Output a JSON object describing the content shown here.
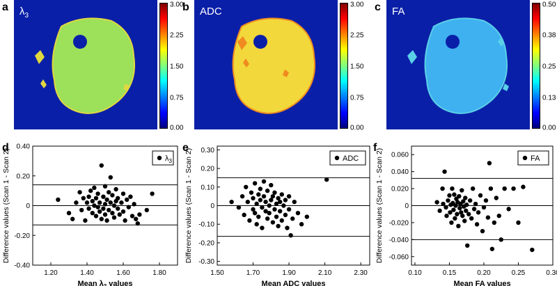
{
  "panel_letters": {
    "a": "a",
    "b": "b",
    "c": "c",
    "d": "d",
    "e": "e",
    "f": "f"
  },
  "maps": [
    {
      "label_base": "λ",
      "label_sub": "3",
      "ticks": [
        "3.00",
        "2.25",
        "1.50",
        "0.75",
        "0.00"
      ],
      "fill": "#9de05a",
      "accent": "#e0d840"
    },
    {
      "label": "ADC",
      "ticks": [
        "3.00",
        "2.25",
        "1.50",
        "0.75",
        "0.00"
      ],
      "fill": "#f2d83a",
      "accent": "#f08a20"
    },
    {
      "label": "FA",
      "ticks": [
        "0.50",
        "0.38",
        "0.25",
        "0.13",
        "0.00"
      ],
      "fill": "#3fb0f0",
      "accent": "#5ad0e8"
    }
  ],
  "chart_data": [
    {
      "type": "scatter",
      "title": "",
      "xlabel_base": "Mean ",
      "xlabel_sym": "λ",
      "xlabel_sub": "3",
      "xlabel_tail": " values",
      "ylabel": "Difference values (Scan 1 - Scan 2)",
      "xlim": [
        1.1,
        1.9
      ],
      "ylim": [
        -0.4,
        0.4
      ],
      "xticks": [
        1.2,
        1.4,
        1.6,
        1.8
      ],
      "xtick_labels": [
        "1.20",
        "1.40",
        "1.60",
        "1.80"
      ],
      "yticks": [
        -0.4,
        -0.2,
        0,
        0.2,
        0.4
      ],
      "ytick_labels": [
        "-0.40",
        "-0.20",
        "0",
        "0.20",
        "0.40"
      ],
      "hlines": [
        0.14,
        0,
        -0.13
      ],
      "legend_sym": "λ",
      "legend_sub": "3",
      "legend_position": "top-right",
      "points": [
        [
          1.24,
          0.04
        ],
        [
          1.3,
          -0.05
        ],
        [
          1.32,
          -0.09
        ],
        [
          1.34,
          0.02
        ],
        [
          1.36,
          0.09
        ],
        [
          1.37,
          -0.03
        ],
        [
          1.38,
          0.05
        ],
        [
          1.39,
          -0.1
        ],
        [
          1.4,
          0.02
        ],
        [
          1.41,
          0.06
        ],
        [
          1.41,
          -0.02
        ],
        [
          1.42,
          0.1
        ],
        [
          1.43,
          -0.05
        ],
        [
          1.43,
          0.03
        ],
        [
          1.44,
          0
        ],
        [
          1.44,
          0.12
        ],
        [
          1.45,
          -0.07
        ],
        [
          1.45,
          0.05
        ],
        [
          1.46,
          -0.01
        ],
        [
          1.46,
          0.08
        ],
        [
          1.47,
          -0.04
        ],
        [
          1.47,
          0.02
        ],
        [
          1.48,
          0.27
        ],
        [
          1.48,
          -0.09
        ],
        [
          1.49,
          0.06
        ],
        [
          1.49,
          -0.02
        ],
        [
          1.5,
          0.13
        ],
        [
          1.5,
          0.01
        ],
        [
          1.5,
          -0.06
        ],
        [
          1.51,
          0.04
        ],
        [
          1.51,
          -0.1
        ],
        [
          1.52,
          0.09
        ],
        [
          1.52,
          -0.03
        ],
        [
          1.53,
          0.02
        ],
        [
          1.53,
          0.19
        ],
        [
          1.54,
          -0.05
        ],
        [
          1.54,
          0.07
        ],
        [
          1.55,
          0
        ],
        [
          1.55,
          -0.08
        ],
        [
          1.56,
          0.11
        ],
        [
          1.56,
          0.03
        ],
        [
          1.57,
          -0.02
        ],
        [
          1.57,
          0.05
        ],
        [
          1.58,
          -0.06
        ],
        [
          1.59,
          0.02
        ],
        [
          1.6,
          0.08
        ],
        [
          1.6,
          -0.04
        ],
        [
          1.61,
          -0.1
        ],
        [
          1.62,
          0.04
        ],
        [
          1.63,
          -0.01
        ],
        [
          1.64,
          0.06
        ],
        [
          1.65,
          -0.07
        ],
        [
          1.66,
          0.01
        ],
        [
          1.67,
          -0.09
        ],
        [
          1.68,
          -0.12
        ],
        [
          1.69,
          -0.06
        ],
        [
          1.73,
          -0.03
        ],
        [
          1.76,
          0.08
        ]
      ]
    },
    {
      "type": "scatter",
      "title": "",
      "xlabel": "Mean ADC values",
      "ylabel": "Difference values (Scan 1 - Scan 2)",
      "xlim": [
        1.5,
        2.35
      ],
      "ylim": [
        -0.32,
        0.32
      ],
      "xticks": [
        1.5,
        1.7,
        1.9,
        2.1,
        2.3
      ],
      "xtick_labels": [
        "1.50",
        "1.70",
        "1.90",
        "2.10",
        "2.30"
      ],
      "yticks": [
        -0.3,
        -0.2,
        -0.1,
        0,
        0.1,
        0.2,
        0.3
      ],
      "ytick_labels": [
        "-0.30",
        "-0.20",
        "-0.10",
        "0",
        "0.10",
        "0.20",
        "0.30"
      ],
      "hlines": [
        0.15,
        0,
        -0.165
      ],
      "legend_label": "ADC",
      "legend_position": "top-right",
      "points": [
        [
          1.58,
          0.02
        ],
        [
          1.62,
          -0.01
        ],
        [
          1.64,
          0.05
        ],
        [
          1.65,
          -0.05
        ],
        [
          1.66,
          0.1
        ],
        [
          1.67,
          0.02
        ],
        [
          1.68,
          -0.08
        ],
        [
          1.69,
          0.07
        ],
        [
          1.7,
          -0.02
        ],
        [
          1.7,
          0.04
        ],
        [
          1.71,
          0.12
        ],
        [
          1.71,
          -0.04
        ],
        [
          1.72,
          0.01
        ],
        [
          1.72,
          -0.1
        ],
        [
          1.73,
          0.06
        ],
        [
          1.73,
          -0.06
        ],
        [
          1.74,
          0.03
        ],
        [
          1.74,
          0.09
        ],
        [
          1.75,
          -0.01
        ],
        [
          1.75,
          -0.12
        ],
        [
          1.76,
          0.05
        ],
        [
          1.76,
          0.13
        ],
        [
          1.77,
          -0.03
        ],
        [
          1.77,
          0.02
        ],
        [
          1.78,
          -0.07
        ],
        [
          1.78,
          0.08
        ],
        [
          1.79,
          0
        ],
        [
          1.79,
          -0.04
        ],
        [
          1.8,
          0.11
        ],
        [
          1.8,
          0.03
        ],
        [
          1.81,
          -0.09
        ],
        [
          1.81,
          0.05
        ],
        [
          1.82,
          -0.02
        ],
        [
          1.82,
          0.07
        ],
        [
          1.83,
          0.01
        ],
        [
          1.83,
          -0.06
        ],
        [
          1.84,
          0.04
        ],
        [
          1.84,
          -0.11
        ],
        [
          1.85,
          0.02
        ],
        [
          1.85,
          -0.03
        ],
        [
          1.86,
          0.06
        ],
        [
          1.86,
          -0.08
        ],
        [
          1.87,
          0
        ],
        [
          1.88,
          -0.05
        ],
        [
          1.88,
          0.03
        ],
        [
          1.89,
          -0.12
        ],
        [
          1.9,
          -0.02
        ],
        [
          1.9,
          0.05
        ],
        [
          1.91,
          -0.16
        ],
        [
          1.92,
          -0.07
        ],
        [
          1.93,
          0.02
        ],
        [
          1.95,
          -0.04
        ],
        [
          1.97,
          -0.1
        ],
        [
          2.0,
          -0.06
        ],
        [
          2.11,
          0.14
        ]
      ]
    },
    {
      "type": "scatter",
      "title": "",
      "xlabel": "Mean FA values",
      "ylabel": "Difference values (Scan 1 - Scan 2)",
      "xlim": [
        0.095,
        0.3
      ],
      "ylim": [
        -0.07,
        0.07
      ],
      "xticks": [
        0.1,
        0.15,
        0.2,
        0.25,
        0.3
      ],
      "xtick_labels": [
        "0.10",
        "0.15",
        "0.20",
        "0.25",
        "0.30"
      ],
      "yticks": [
        -0.06,
        -0.04,
        -0.02,
        0,
        0.02,
        0.04,
        0.06
      ],
      "ytick_labels": [
        "-0.060",
        "-0.040",
        "-0.020",
        "0",
        "0.020",
        "0.040",
        "0.060"
      ],
      "hlines": [
        0.032,
        0,
        -0.04
      ],
      "legend_label": "FA",
      "legend_position": "top-right",
      "points": [
        [
          0.132,
          0.004
        ],
        [
          0.136,
          -0.006
        ],
        [
          0.14,
          0.02
        ],
        [
          0.141,
          0.002
        ],
        [
          0.143,
          0.04
        ],
        [
          0.145,
          -0.002
        ],
        [
          0.146,
          -0.012
        ],
        [
          0.148,
          0.006
        ],
        [
          0.15,
          0.012
        ],
        [
          0.151,
          -0.008
        ],
        [
          0.152,
          0.001
        ],
        [
          0.153,
          -0.02
        ],
        [
          0.154,
          0.02
        ],
        [
          0.155,
          0.003
        ],
        [
          0.156,
          -0.005
        ],
        [
          0.157,
          0.013
        ],
        [
          0.158,
          -0.015
        ],
        [
          0.159,
          0
        ],
        [
          0.16,
          0.008
        ],
        [
          0.161,
          -0.01
        ],
        [
          0.162,
          0.004
        ],
        [
          0.163,
          -0.024
        ],
        [
          0.164,
          0.011
        ],
        [
          0.165,
          -0.003
        ],
        [
          0.166,
          0.002
        ],
        [
          0.167,
          -0.008
        ],
        [
          0.168,
          0.018
        ],
        [
          0.169,
          -0.012
        ],
        [
          0.17,
          0.005
        ],
        [
          0.171,
          -0.001
        ],
        [
          0.172,
          -0.018
        ],
        [
          0.173,
          0.009
        ],
        [
          0.174,
          -0.006
        ],
        [
          0.175,
          0.001
        ],
        [
          0.176,
          -0.047
        ],
        [
          0.178,
          -0.01
        ],
        [
          0.18,
          0.006
        ],
        [
          0.182,
          -0.015
        ],
        [
          0.184,
          0.02
        ],
        [
          0.186,
          -0.004
        ],
        [
          0.188,
          0.002
        ],
        [
          0.19,
          -0.022
        ],
        [
          0.192,
          -0.008
        ],
        [
          0.195,
          0.012
        ],
        [
          0.198,
          -0.03
        ],
        [
          0.2,
          -0.002
        ],
        [
          0.203,
          0.006
        ],
        [
          0.206,
          -0.014
        ],
        [
          0.208,
          0.05
        ],
        [
          0.21,
          0.02
        ],
        [
          0.212,
          -0.051
        ],
        [
          0.215,
          -0.02
        ],
        [
          0.218,
          0.009
        ],
        [
          0.222,
          -0.012
        ],
        [
          0.225,
          -0.04
        ],
        [
          0.23,
          0.02
        ],
        [
          0.236,
          -0.004
        ],
        [
          0.243,
          0.02
        ],
        [
          0.25,
          -0.02
        ],
        [
          0.257,
          0.022
        ],
        [
          0.27,
          -0.052
        ]
      ]
    }
  ]
}
